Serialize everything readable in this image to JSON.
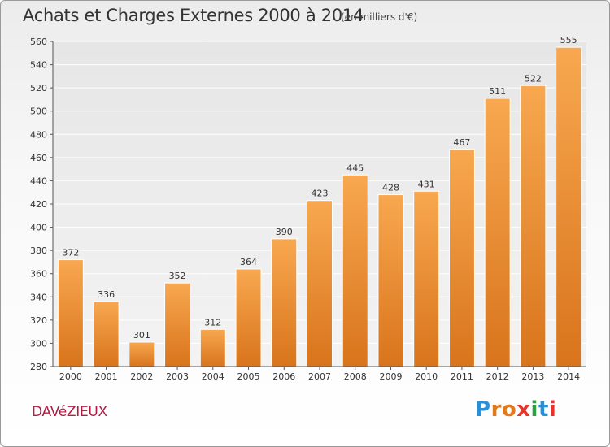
{
  "header": {
    "title": "Achats et Charges Externes 2000 à 2014",
    "unit_note": "(en milliers d'€)"
  },
  "footer": {
    "commune": "DAVéZIEUX",
    "logo": {
      "letters": [
        "P",
        "r",
        "o",
        "x",
        "i",
        "t",
        "i"
      ],
      "colors": [
        "#2a8fd6",
        "#e07a1c",
        "#e07a1c",
        "#e5352b",
        "#2ea043",
        "#2a8fd6",
        "#e5352b"
      ]
    }
  },
  "chart_data": {
    "type": "bar",
    "title": "Achats et Charges Externes 2000 à 2014",
    "subtitle": "(en milliers d'€)",
    "categories": [
      "2000",
      "2001",
      "2002",
      "2003",
      "2004",
      "2005",
      "2006",
      "2007",
      "2008",
      "2009",
      "2010",
      "2011",
      "2012",
      "2013",
      "2014"
    ],
    "values": [
      372,
      336,
      301,
      352,
      312,
      364,
      390,
      423,
      445,
      428,
      431,
      467,
      511,
      522,
      555
    ],
    "ylim": [
      280,
      560
    ],
    "yticks": [
      280,
      300,
      320,
      340,
      360,
      380,
      400,
      420,
      440,
      460,
      480,
      500,
      520,
      540,
      560
    ],
    "grid": true,
    "bar_color": "#f0922e",
    "xlabel": "",
    "ylabel": ""
  }
}
